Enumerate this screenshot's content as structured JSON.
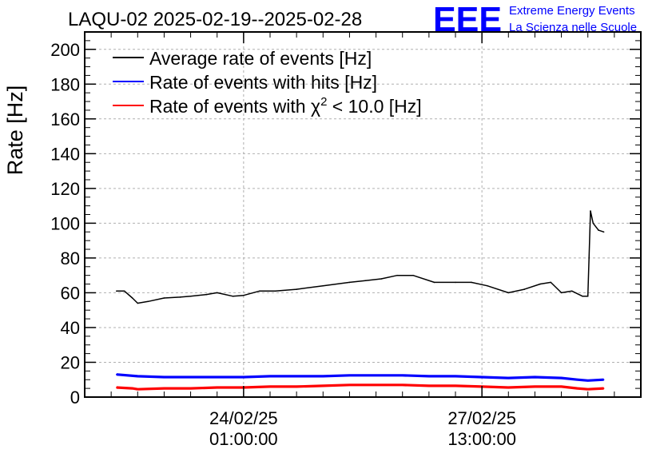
{
  "chart_data": {
    "type": "line",
    "title": "LAQU-02 2025-02-19--2025-02-28",
    "ylabel": "Rate [Hz]",
    "xlabel": "",
    "ylim": [
      0,
      210
    ],
    "yticks": [
      0,
      20,
      40,
      60,
      80,
      100,
      120,
      140,
      160,
      180,
      200
    ],
    "xlim_days": [
      0,
      10.5
    ],
    "grid": true,
    "legend_position": "top-left",
    "x_ticks": [
      {
        "x": 3.0,
        "line1": "24/02/25",
        "line2": "01:00:00"
      },
      {
        "x": 7.5,
        "line1": "27/02/25",
        "line2": "13:00:00"
      }
    ],
    "logo": {
      "mark": "EEE",
      "line1": "Extreme Energy Events",
      "line2": "La Scienza nelle Scuole",
      "color": "#0000ff"
    },
    "legend": [
      {
        "label_pre": "Average rate of events [Hz]",
        "sup": "",
        "label_post": "",
        "color": "#000000"
      },
      {
        "label_pre": "Rate of events with hits [Hz]",
        "sup": "",
        "label_post": "",
        "color": "#0000ff"
      },
      {
        "label_pre": "Rate of events with χ",
        "sup": "2",
        "label_post": " < 10.0 [Hz]",
        "color": "#ff0000"
      }
    ],
    "series": [
      {
        "name": "Average rate of events [Hz]",
        "color": "#000000",
        "x": [
          0.6,
          0.75,
          0.9,
          1.0,
          1.2,
          1.5,
          1.8,
          2.0,
          2.3,
          2.5,
          2.8,
          3.0,
          3.3,
          3.6,
          4.0,
          4.5,
          5.0,
          5.3,
          5.6,
          5.9,
          6.2,
          6.6,
          7.0,
          7.3,
          7.6,
          8.0,
          8.3,
          8.6,
          8.8,
          9.0,
          9.2,
          9.4,
          9.5,
          9.55,
          9.6,
          9.7,
          9.8
        ],
        "values": [
          61,
          61,
          57,
          54,
          55,
          57,
          57.5,
          58,
          59,
          60,
          58,
          58.5,
          61,
          61,
          62,
          64,
          66,
          67,
          68,
          70,
          70,
          66,
          66,
          66,
          64,
          60,
          62,
          65,
          66,
          60,
          61,
          58,
          58,
          107,
          100,
          96,
          95
        ]
      },
      {
        "name": "Rate of events with hits [Hz]",
        "color": "#0000ff",
        "x": [
          0.6,
          1.0,
          1.5,
          2.0,
          2.5,
          3.0,
          3.5,
          4.0,
          4.5,
          5.0,
          5.5,
          6.0,
          6.5,
          7.0,
          7.5,
          8.0,
          8.5,
          9.0,
          9.3,
          9.5,
          9.8
        ],
        "values": [
          13,
          12,
          11.5,
          11.5,
          11.5,
          11.5,
          12,
          12,
          12,
          12.5,
          12.5,
          12.5,
          12,
          12,
          11.5,
          11,
          11.5,
          11,
          10,
          9.5,
          10
        ]
      },
      {
        "name": "Rate of events with χ2 < 10.0 [Hz]",
        "color": "#ff0000",
        "x": [
          0.6,
          0.9,
          1.0,
          1.5,
          2.0,
          2.5,
          3.0,
          3.5,
          4.0,
          4.5,
          5.0,
          5.5,
          6.0,
          6.5,
          7.0,
          7.5,
          8.0,
          8.5,
          9.0,
          9.3,
          9.5,
          9.8
        ],
        "values": [
          5.5,
          5,
          4.5,
          5,
          5,
          5.5,
          5.5,
          6,
          6,
          6.5,
          7,
          7,
          7,
          6.5,
          6.5,
          6,
          5.5,
          6,
          6,
          5,
          4.5,
          5
        ]
      }
    ]
  }
}
